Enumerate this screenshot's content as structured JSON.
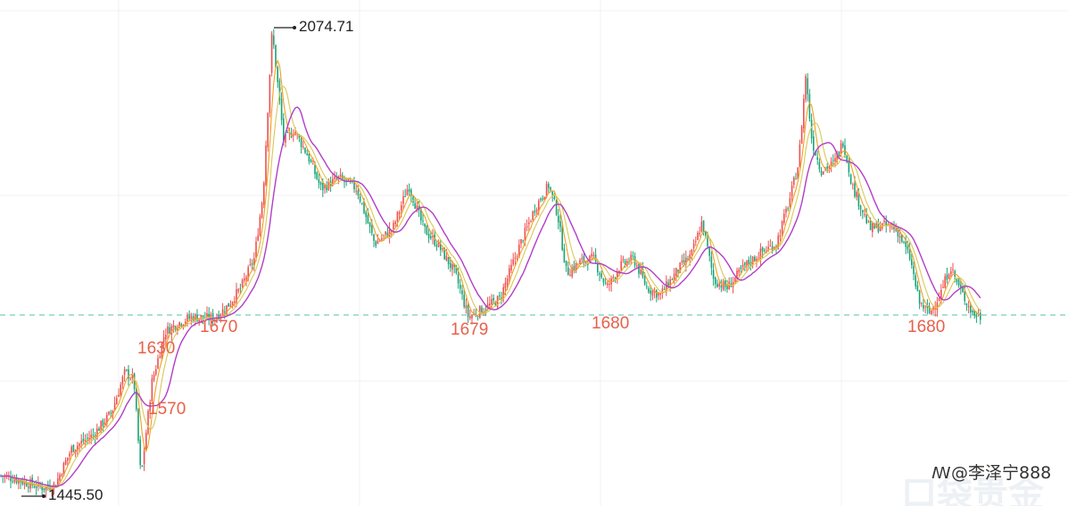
{
  "chart_data": {
    "type": "candlestick",
    "y_range": [
      1440,
      2085
    ],
    "grid": true,
    "high_label": "2074.71",
    "low_label": "1445.50",
    "support_line": 1680,
    "annotations": [
      {
        "text": "1630",
        "value": 1630
      },
      {
        "text": "1570",
        "value": 1570
      },
      {
        "text": "1670",
        "value": 1670
      },
      {
        "text": "1679",
        "value": 1679
      },
      {
        "text": "1680",
        "value": 1680
      },
      {
        "text": "1680",
        "value": 1680
      }
    ],
    "colors": {
      "up": "#ef4f4f",
      "down": "#1aa37a",
      "ma_fast": "#f0a020",
      "ma_mid": "#d8c85a",
      "ma_slow": "#b13dc8",
      "support_line": "#56c2a8",
      "annotation": "#e8604c"
    },
    "price_path": [
      [
        0,
        1464
      ],
      [
        15,
        1460
      ],
      [
        35,
        1452
      ],
      [
        50,
        1447
      ],
      [
        62,
        1452
      ],
      [
        80,
        1500
      ],
      [
        105,
        1520
      ],
      [
        125,
        1550
      ],
      [
        140,
        1605
      ],
      [
        150,
        1595
      ],
      [
        158,
        1460
      ],
      [
        170,
        1590
      ],
      [
        185,
        1660
      ],
      [
        200,
        1672
      ],
      [
        215,
        1680
      ],
      [
        240,
        1678
      ],
      [
        255,
        1695
      ],
      [
        270,
        1720
      ],
      [
        285,
        1760
      ],
      [
        295,
        1850
      ],
      [
        305,
        2070
      ],
      [
        318,
        1920
      ],
      [
        330,
        1935
      ],
      [
        345,
        1900
      ],
      [
        360,
        1855
      ],
      [
        380,
        1870
      ],
      [
        400,
        1855
      ],
      [
        420,
        1780
      ],
      [
        440,
        1800
      ],
      [
        458,
        1860
      ],
      [
        475,
        1800
      ],
      [
        490,
        1780
      ],
      [
        510,
        1740
      ],
      [
        525,
        1680
      ],
      [
        540,
        1690
      ],
      [
        560,
        1705
      ],
      [
        580,
        1770
      ],
      [
        600,
        1830
      ],
      [
        615,
        1860
      ],
      [
        625,
        1820
      ],
      [
        635,
        1740
      ],
      [
        650,
        1755
      ],
      [
        665,
        1760
      ],
      [
        680,
        1720
      ],
      [
        695,
        1750
      ],
      [
        710,
        1760
      ],
      [
        725,
        1720
      ],
      [
        740,
        1710
      ],
      [
        760,
        1745
      ],
      [
        775,
        1765
      ],
      [
        787,
        1810
      ],
      [
        800,
        1730
      ],
      [
        815,
        1720
      ],
      [
        835,
        1750
      ],
      [
        855,
        1770
      ],
      [
        870,
        1780
      ],
      [
        885,
        1840
      ],
      [
        895,
        1890
      ],
      [
        903,
        2010
      ],
      [
        910,
        1920
      ],
      [
        920,
        1880
      ],
      [
        935,
        1890
      ],
      [
        945,
        1920
      ],
      [
        955,
        1860
      ],
      [
        965,
        1830
      ],
      [
        975,
        1800
      ],
      [
        990,
        1805
      ],
      [
        1005,
        1800
      ],
      [
        1020,
        1760
      ],
      [
        1030,
        1700
      ],
      [
        1042,
        1685
      ],
      [
        1055,
        1715
      ],
      [
        1065,
        1750
      ],
      [
        1075,
        1720
      ],
      [
        1090,
        1685
      ],
      [
        1100,
        1680
      ]
    ]
  },
  "watermark": {
    "handle": "@李泽宁888",
    "logo_text": "口袋贵金"
  }
}
